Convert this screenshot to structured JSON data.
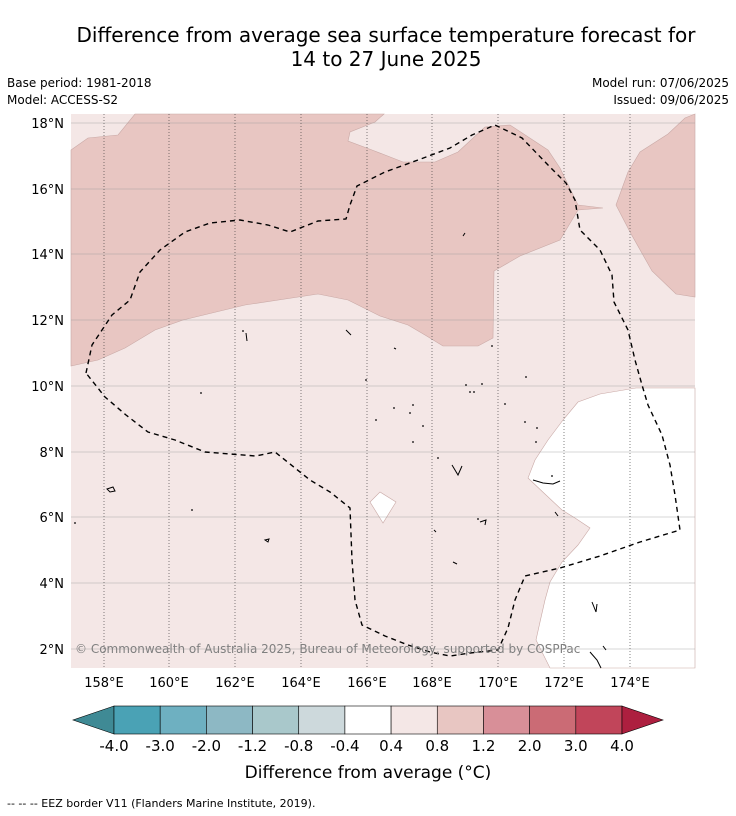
{
  "title": {
    "line1": "Difference from average sea surface temperature forecast for",
    "line2": "14 to 27 June 2025"
  },
  "meta": {
    "base_period": "Base period: 1981-2018",
    "model": "Model: ACCESS-S2",
    "model_run": "Model run: 07/06/2025",
    "issued": "Issued: 09/06/2025"
  },
  "map": {
    "lat_labels": [
      "18°N",
      "16°N",
      "14°N",
      "12°N",
      "10°N",
      "8°N",
      "6°N",
      "4°N",
      "2°N"
    ],
    "lon_labels": [
      "158°E",
      "160°E",
      "162°E",
      "164°E",
      "166°E",
      "168°E",
      "170°E",
      "172°E",
      "174°E"
    ],
    "copyright": "© Commonwealth of Australia 2025, Bureau of Meteorology, supported by COSPPac",
    "colors": {
      "band_0_4_to_0_8": "#f4e7e6",
      "band_0_8_to_1_2": "#e8c6c2",
      "neutral": "#ffffff"
    }
  },
  "colorbar": {
    "title": "Difference from average (°C)",
    "ticks": [
      "-4.0",
      "-3.0",
      "-2.0",
      "-1.2",
      "-0.8",
      "-0.4",
      "0.4",
      "0.8",
      "1.2",
      "2.0",
      "3.0",
      "4.0"
    ],
    "colors": [
      "#3f8a95",
      "#4aa2b5",
      "#6eb0c1",
      "#8db8c4",
      "#a9c8cb",
      "#cdd9dc",
      "#ffffff",
      "#f4e7e6",
      "#e8c6c2",
      "#d88f98",
      "#cb6b75",
      "#c1455a",
      "#ad1f3f"
    ]
  },
  "footer": "-- -- -- EEZ border V11 (Flanders Marine Institute, 2019)."
}
